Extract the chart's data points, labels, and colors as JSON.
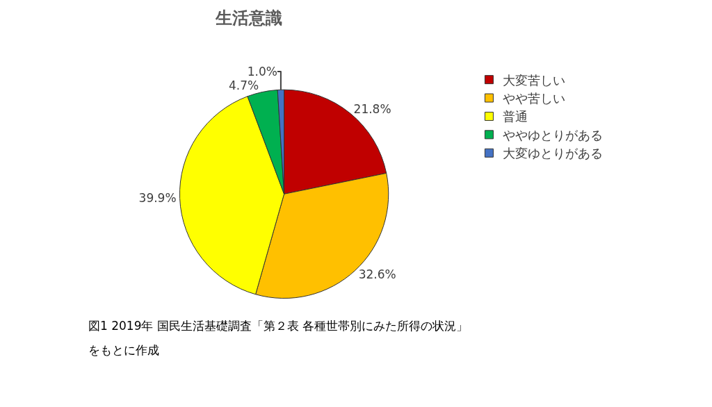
{
  "chart_data": {
    "type": "pie",
    "title": "生活意識",
    "categories": [
      "大変苦しい",
      "やや苦しい",
      "普通",
      "ややゆとりがある",
      "大変ゆとりがある"
    ],
    "values": [
      21.8,
      32.6,
      39.9,
      4.7,
      1.0
    ],
    "value_labels": [
      "21.8%",
      "32.6%",
      "39.9%",
      "4.7%",
      "1.0%"
    ],
    "colors": [
      "#c00000",
      "#ffc000",
      "#ffff00",
      "#00b050",
      "#4472c4"
    ],
    "legend": "right",
    "annotations": [
      "図1 2019年 国民生活基礎調査「第２表 各種世帯別にみた所得の状況」",
      "をもとに作成"
    ]
  }
}
